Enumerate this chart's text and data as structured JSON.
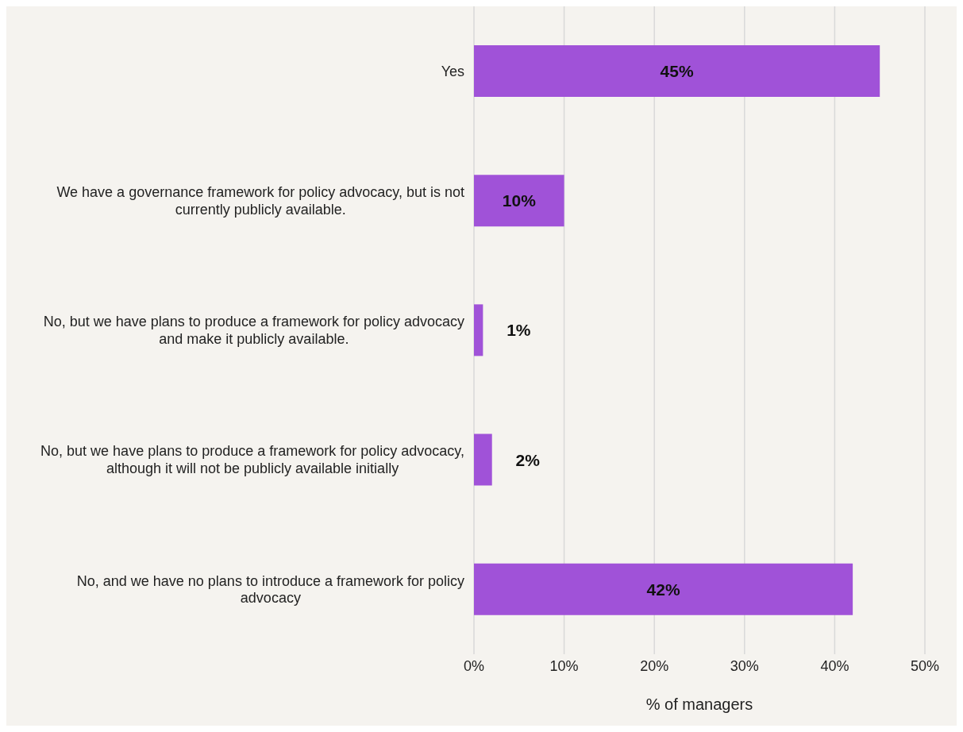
{
  "chart_data": {
    "type": "bar",
    "orientation": "horizontal",
    "xlabel": "% of managers",
    "categories": [
      "Yes",
      "We have a governance framework for policy advocacy, but is not currently publicly available.",
      "No, but we have plans to produce a framework for policy advocacy and make it publicly available.",
      "No, but we have plans to produce a framework for policy advocacy, although it will not be publicly available initially",
      "No, and we have no plans to introduce a framework for policy advocacy"
    ],
    "values": [
      45,
      10,
      1,
      2,
      42
    ],
    "value_labels": [
      "45%",
      "10%",
      "1%",
      "2%",
      "42%"
    ],
    "color": "#a052d8",
    "xlim": [
      0,
      50
    ],
    "xticks": [
      {
        "value": 0,
        "label": "0%"
      },
      {
        "value": 10,
        "label": "10%"
      },
      {
        "value": 20,
        "label": "20%"
      },
      {
        "value": 30,
        "label": "30%"
      },
      {
        "value": 40,
        "label": "40%"
      },
      {
        "value": 50,
        "label": "50%"
      }
    ],
    "grid": "x"
  }
}
